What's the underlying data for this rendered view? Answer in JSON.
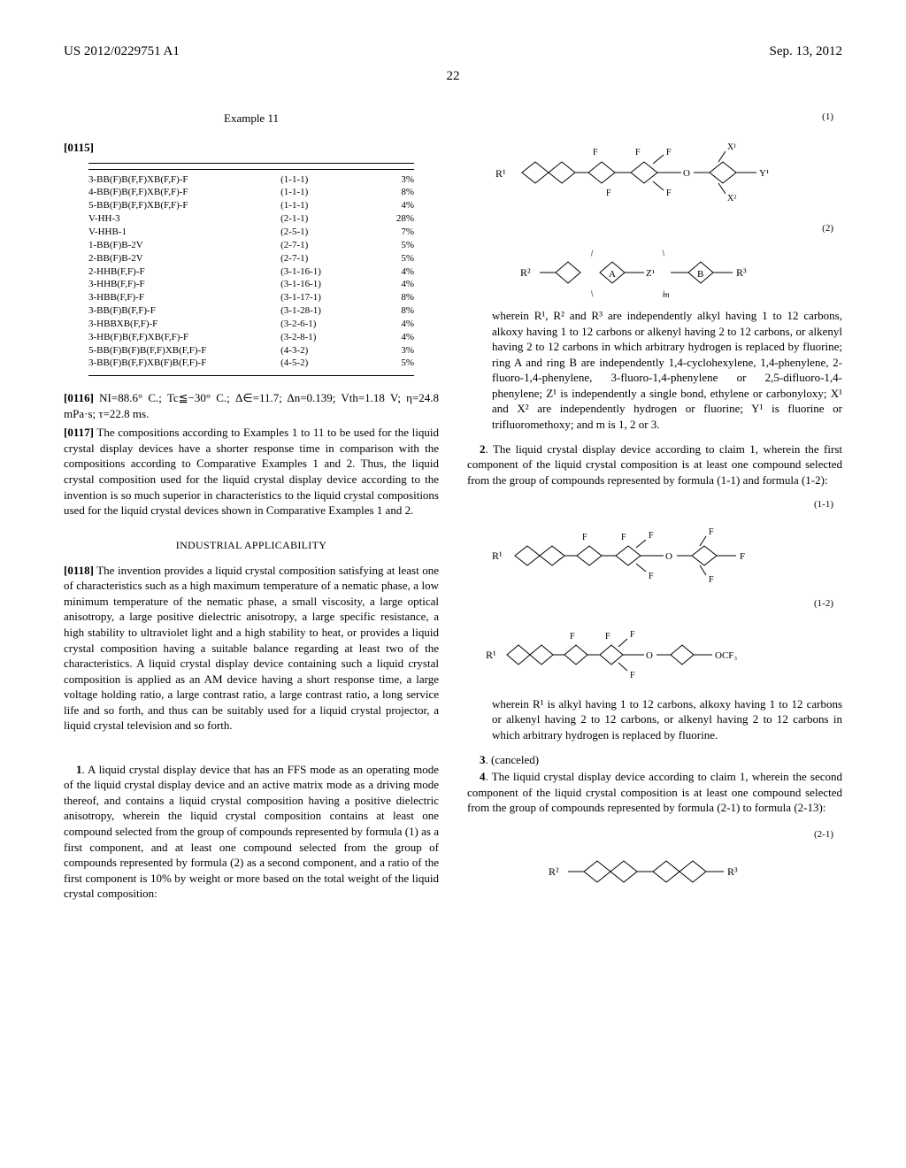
{
  "header": {
    "left": "US 2012/0229751 A1",
    "right": "Sep. 13, 2012"
  },
  "pageNumber": "22",
  "leftCol": {
    "exampleLabel": "Example 11",
    "para0115": "[0115]",
    "table": {
      "rows": [
        [
          "3-BB(F)B(F,F)XB(F,F)-F",
          "(1-1-1)",
          "3%"
        ],
        [
          "4-BB(F)B(F,F)XB(F,F)-F",
          "(1-1-1)",
          "8%"
        ],
        [
          "5-BB(F)B(F,F)XB(F,F)-F",
          "(1-1-1)",
          "4%"
        ],
        [
          "V-HH-3",
          "(2-1-1)",
          "28%"
        ],
        [
          "V-HHB-1",
          "(2-5-1)",
          "7%"
        ],
        [
          "1-BB(F)B-2V",
          "(2-7-1)",
          "5%"
        ],
        [
          "2-BB(F)B-2V",
          "(2-7-1)",
          "5%"
        ],
        [
          "2-HHB(F,F)-F",
          "(3-1-16-1)",
          "4%"
        ],
        [
          "3-HHB(F,F)-F",
          "(3-1-16-1)",
          "4%"
        ],
        [
          "3-HBB(F,F)-F",
          "(3-1-17-1)",
          "8%"
        ],
        [
          "3-BB(F)B(F,F)-F",
          "(3-1-28-1)",
          "8%"
        ],
        [
          "3-HBBXB(F,F)-F",
          "(3-2-6-1)",
          "4%"
        ],
        [
          "3-HB(F)B(F,F)XB(F,F)-F",
          "(3-2-8-1)",
          "4%"
        ],
        [
          "5-BB(F)B(F)B(F,F)XB(F,F)-F",
          "(4-3-2)",
          "3%"
        ],
        [
          "3-BB(F)B(F,F)XB(F)B(F,F)-F",
          "(4-5-2)",
          "5%"
        ]
      ]
    },
    "para0116": {
      "num": "[0116]",
      "text": "  NI=88.6° C.; Tc≦−30° C.; Δ∈=11.7; Δn=0.139; Vth=1.18 V; η=24.8 mPa·s; τ=22.8 ms."
    },
    "para0117": {
      "num": "[0117]",
      "text": "  The compositions according to Examples 1 to 11 to be used for the liquid crystal display devices have a shorter response time in comparison with the compositions according to Comparative Examples 1 and 2. Thus, the liquid crystal composition used for the liquid crystal display device according to the invention is so much superior in characteristics to the liquid crystal compositions used for the liquid crystal devices shown in Comparative Examples 1 and 2."
    },
    "industrialHeading": "INDUSTRIAL APPLICABILITY",
    "para0118": {
      "num": "[0118]",
      "text": "  The invention provides a liquid crystal composition satisfying at least one of characteristics such as a high maximum temperature of a nematic phase, a low minimum temperature of the nematic phase, a small viscosity, a large optical anisotropy, a large positive dielectric anisotropy, a large specific resistance, a high stability to ultraviolet light and a high stability to heat, or provides a liquid crystal composition having a suitable balance regarding at least two of the characteristics. A liquid crystal display device containing such a liquid crystal composition is applied as an AM device having a short response time, a large voltage holding ratio, a large contrast ratio, a large contrast ratio, a long service life and so forth, and thus can be suitably used for a liquid crystal projector, a liquid crystal television and so forth."
    },
    "claim1": {
      "num": "1",
      "text": ". A liquid crystal display device that has an FFS mode as an operating mode of the liquid crystal display device and an active matrix mode as a driving mode thereof, and contains a liquid crystal composition having a positive dielectric anisotropy, wherein the liquid crystal composition contains at least one compound selected from the group of compounds represented by formula (1) as a first component, and at least one compound selected from the group of compounds represented by formula (2) as a second component, and a ratio of the first component is 10% by weight or more based on the total weight of the liquid crystal composition:"
    }
  },
  "rightCol": {
    "formula1Num": "(1)",
    "formula2Num": "(2)",
    "wherein1": "wherein R¹, R² and R³ are independently alkyl having 1 to 12 carbons, alkoxy having 1 to 12 carbons or alkenyl having 2 to 12 carbons, or alkenyl having 2 to 12 carbons in which arbitrary hydrogen is replaced by fluorine; ring A and ring B are independently 1,4-cyclohexylene, 1,4-phenylene, 2-fluoro-1,4-phenylene, 3-fluoro-1,4-phenylene or 2,5-difluoro-1,4-phenylene; Z¹ is independently a single bond, ethylene or carbonyloxy; X¹ and X² are independently hydrogen or fluorine; Y¹ is fluorine or trifluoromethoxy; and m is 1, 2 or 3.",
    "claim2": {
      "num": "2",
      "text": ". The liquid crystal display device according to claim 1, wherein the first component of the liquid crystal composition is at least one compound selected from the group of compounds represented by formula (1-1) and formula (1-2):"
    },
    "formula11Num": "(1-1)",
    "formula12Num": "(1-2)",
    "wherein2": "wherein R¹ is alkyl having 1 to 12 carbons, alkoxy having 1 to 12 carbons or alkenyl having 2 to 12 carbons, or alkenyl having 2 to 12 carbons in which arbitrary hydrogen is replaced by fluorine.",
    "claim3": {
      "num": "3",
      "text": ". (canceled)"
    },
    "claim4": {
      "num": "4",
      "text": ". The liquid crystal display device according to claim 1, wherein the second component of the liquid crystal composition is at least one compound selected from the group of compounds represented by formula (2-1) to formula (2-13):"
    },
    "formula21Num": "(2-1)"
  },
  "colors": {
    "text": "#000000",
    "bg": "#ffffff"
  }
}
